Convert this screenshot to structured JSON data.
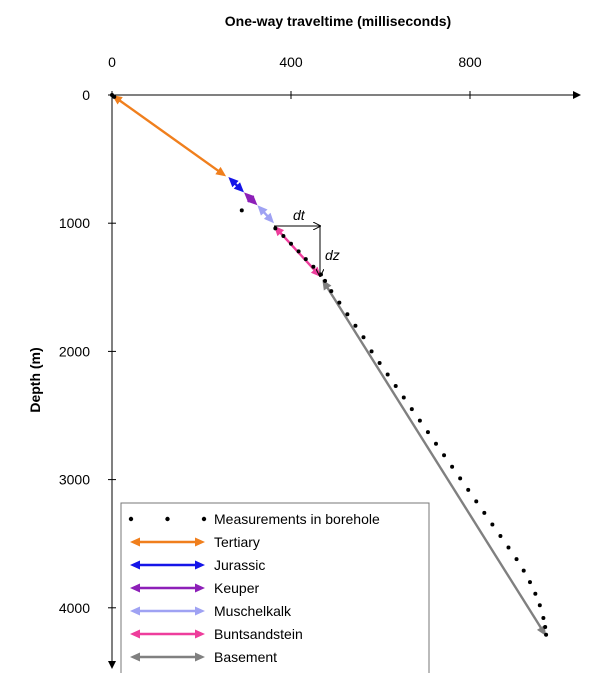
{
  "chart_data": {
    "type": "line",
    "title": "",
    "xlabel": "One-way traveltime (milliseconds)",
    "ylabel": "Depth (m)",
    "xlim": [
      0,
      1000
    ],
    "ylim": [
      0,
      4500
    ],
    "x_ticks": [
      "0",
      "400",
      "800"
    ],
    "y_ticks": [
      "0",
      "1000",
      "2000",
      "3000",
      "4000"
    ],
    "x_axis_position": "top",
    "y_axis_inverted": true,
    "grid": false,
    "legend_position": "bottom-left",
    "annotations": {
      "dt": "dt",
      "dz": "dz"
    },
    "series": [
      {
        "name": "Measurements in borehole",
        "kind": "points",
        "color": "#000000",
        "points": [
          [
            0,
            0
          ],
          [
            5,
            15
          ],
          [
            290,
            900
          ],
          [
            365,
            1040
          ],
          [
            383,
            1100
          ],
          [
            400,
            1160
          ],
          [
            417,
            1220
          ],
          [
            433,
            1280
          ],
          [
            450,
            1340
          ],
          [
            467,
            1400
          ],
          [
            476,
            1450
          ],
          [
            490,
            1530
          ],
          [
            508,
            1620
          ],
          [
            526,
            1710
          ],
          [
            544,
            1800
          ],
          [
            562,
            1890
          ],
          [
            580,
            2000
          ],
          [
            598,
            2090
          ],
          [
            616,
            2180
          ],
          [
            634,
            2270
          ],
          [
            652,
            2360
          ],
          [
            670,
            2450
          ],
          [
            688,
            2540
          ],
          [
            706,
            2630
          ],
          [
            724,
            2720
          ],
          [
            742,
            2810
          ],
          [
            760,
            2900
          ],
          [
            778,
            2990
          ],
          [
            796,
            3080
          ],
          [
            814,
            3170
          ],
          [
            832,
            3260
          ],
          [
            850,
            3350
          ],
          [
            868,
            3440
          ],
          [
            886,
            3530
          ],
          [
            904,
            3620
          ],
          [
            920,
            3710
          ],
          [
            934,
            3800
          ],
          [
            946,
            3890
          ],
          [
            956,
            3980
          ],
          [
            964,
            4080
          ],
          [
            968,
            4150
          ],
          [
            970,
            4210
          ]
        ]
      },
      {
        "name": "Tertiary",
        "kind": "interval",
        "color": "#f07f1d",
        "values": [
          [
            0,
            0
          ],
          [
            255,
            635
          ]
        ]
      },
      {
        "name": "Jurassic",
        "kind": "interval",
        "color": "#1515e8",
        "values": [
          [
            260,
            640
          ],
          [
            295,
            760
          ]
        ]
      },
      {
        "name": "Keuper",
        "kind": "interval",
        "color": "#8d1fb8",
        "values": [
          [
            295,
            760
          ],
          [
            325,
            860
          ]
        ]
      },
      {
        "name": "Muschelkalk",
        "kind": "interval",
        "color": "#9fa2f3",
        "values": [
          [
            325,
            860
          ],
          [
            362,
            1000
          ]
        ]
      },
      {
        "name": "Buntsandstein",
        "kind": "interval",
        "color": "#ee3d9c",
        "values": [
          [
            362,
            1020
          ],
          [
            467,
            1420
          ]
        ]
      },
      {
        "name": "Basement",
        "kind": "interval",
        "color": "#808080",
        "values": [
          [
            470,
            1440
          ],
          [
            970,
            4220
          ]
        ]
      }
    ]
  }
}
